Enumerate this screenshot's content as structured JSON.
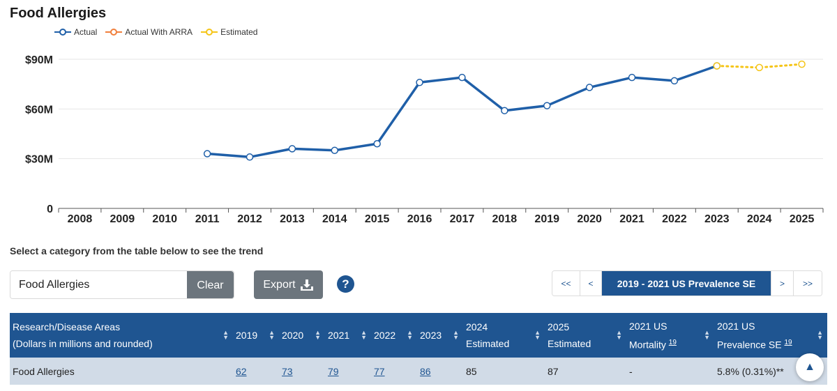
{
  "chart_data": {
    "type": "line",
    "title": "Food Allergies",
    "x": [
      "2008",
      "2009",
      "2010",
      "2011",
      "2012",
      "2013",
      "2014",
      "2015",
      "2016",
      "2017",
      "2018",
      "2019",
      "2020",
      "2021",
      "2022",
      "2023",
      "2024",
      "2025"
    ],
    "series": [
      {
        "name": "Actual",
        "color": "#1f5fa8",
        "style": "solid",
        "values": [
          null,
          null,
          null,
          33,
          31,
          36,
          35,
          39,
          76,
          79,
          59,
          62,
          73,
          79,
          77,
          86,
          null,
          null
        ]
      },
      {
        "name": "Actual With ARRA",
        "color": "#f07f3c",
        "style": "solid",
        "values": [
          null,
          null,
          null,
          null,
          null,
          null,
          null,
          null,
          null,
          null,
          null,
          null,
          null,
          null,
          null,
          null,
          null,
          null
        ]
      },
      {
        "name": "Estimated",
        "color": "#f5c518",
        "style": "dotted",
        "values": [
          null,
          null,
          null,
          null,
          null,
          null,
          null,
          null,
          null,
          null,
          null,
          null,
          null,
          null,
          null,
          86,
          85,
          87
        ]
      }
    ],
    "yticks": [
      {
        "value": 0,
        "label": "0"
      },
      {
        "value": 30,
        "label": "$30M"
      },
      {
        "value": 60,
        "label": "$60M"
      },
      {
        "value": 90,
        "label": "$90M"
      }
    ],
    "ylim": [
      0,
      90
    ],
    "grid": true,
    "legend_position": "top-left"
  },
  "instruction": "Select a category from the table below to see the trend",
  "search": {
    "value": "Food Allergies",
    "clear_label": "Clear"
  },
  "export_label": "Export",
  "help_symbol": "?",
  "pager": {
    "first": "<<",
    "prev": "<",
    "current": "2019 - 2021 US Prevalence SE",
    "next": ">",
    "last": ">>"
  },
  "table": {
    "headers": {
      "area_line1": "Research/Disease Areas",
      "area_line2": "(Dollars in millions and rounded)",
      "y2019": "2019",
      "y2020": "2020",
      "y2021": "2021",
      "y2022": "2022",
      "y2023": "2023",
      "y2024_line1": "2024",
      "y2024_line2": "Estimated",
      "y2025_line1": "2025",
      "y2025_line2": "Estimated",
      "mort_line1": "2021 US",
      "mort_line2": "Mortality",
      "mort_sup": "19",
      "prev_line1": "2021 US",
      "prev_line2": "Prevalence SE",
      "prev_sup": "19"
    },
    "row": {
      "area": "Food Allergies",
      "v2019": "62",
      "v2020": "73",
      "v2021": "79",
      "v2022": "77",
      "v2023": "86",
      "v2024": "85",
      "v2025": "87",
      "mortality": "-",
      "prevalence": "5.8% (0.31%)**"
    }
  },
  "scroll_top_symbol": "▲"
}
